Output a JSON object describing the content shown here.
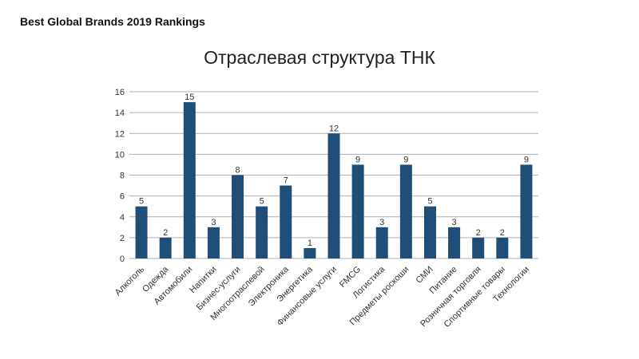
{
  "chart_data": {
    "type": "bar",
    "supertitle": "Best Global Brands 2019 Rankings",
    "title": "Отраслевая структура ТНК",
    "categories": [
      "Алкоголь",
      "Одежда",
      "Автомобили",
      "Напитки",
      "Бизнес-услуги",
      "Многоотраслевой",
      "Электроника",
      "Энергетика",
      "Финансовые услуги",
      "FMCG",
      "Логистика",
      "Предметы роскоши",
      "СМИ",
      "Питание",
      "Розничная торговля",
      "Спортивные товары",
      "Технологии"
    ],
    "values": [
      5,
      2,
      15,
      3,
      8,
      5,
      7,
      1,
      12,
      9,
      3,
      9,
      5,
      3,
      2,
      2,
      9
    ],
    "color": "#1f4e79",
    "ylim": [
      0,
      16
    ],
    "yticks": [
      0,
      2,
      4,
      6,
      8,
      10,
      12,
      14,
      16
    ],
    "grid": true,
    "data_labels": true
  }
}
